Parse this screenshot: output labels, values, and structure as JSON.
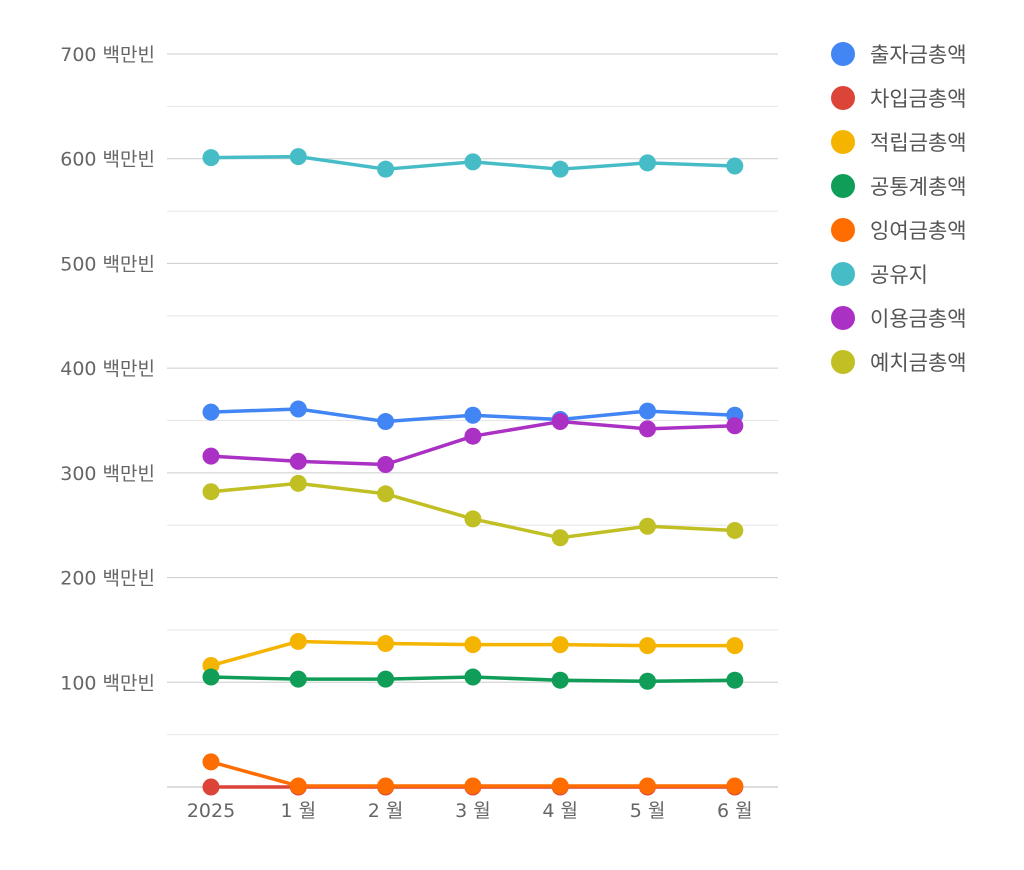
{
  "chart_data": {
    "type": "line",
    "title": "",
    "xlabel": "",
    "ylabel": "",
    "categories": [
      "2025",
      "1 월",
      "2 월",
      "3 월",
      "4 월",
      "5 월",
      "6 월"
    ],
    "ylim": [
      0,
      700
    ],
    "y_ticks": [
      {
        "value": 100,
        "label": "100 백만빈"
      },
      {
        "value": 200,
        "label": "200 백만빈"
      },
      {
        "value": 300,
        "label": "300 백만빈"
      },
      {
        "value": 400,
        "label": "400 백만빈"
      },
      {
        "value": 500,
        "label": "500 백만빈"
      },
      {
        "value": 600,
        "label": "600 백만빈"
      },
      {
        "value": 700,
        "label": "700 백만빈"
      }
    ],
    "minor_grid": [
      50,
      150,
      250,
      350,
      450,
      550,
      650
    ],
    "grid": true,
    "legend_position": "right",
    "series": [
      {
        "name": "출자금총액",
        "color": "#4285f4",
        "values": [
          358,
          361,
          349,
          355,
          351,
          359,
          355
        ]
      },
      {
        "name": "차입금총액",
        "color": "#db4437",
        "values": [
          0,
          0,
          0,
          0,
          0,
          0,
          0
        ]
      },
      {
        "name": "적립금총액",
        "color": "#f4b400",
        "values": [
          116,
          139,
          137,
          136,
          136,
          135,
          135
        ]
      },
      {
        "name": "공통계총액",
        "color": "#0f9d58",
        "values": [
          105,
          103,
          103,
          105,
          102,
          101,
          102
        ]
      },
      {
        "name": "잉여금총액",
        "color": "#ff6d00",
        "values": [
          24,
          1,
          1,
          1,
          1,
          1,
          1
        ]
      },
      {
        "name": "공유지",
        "color": "#46bdc6",
        "values": [
          601,
          602,
          590,
          597,
          590,
          596,
          593
        ]
      },
      {
        "name": "이용금총액",
        "color": "#ab30c4",
        "values": [
          316,
          311,
          308,
          335,
          349,
          342,
          345
        ]
      },
      {
        "name": "예치금총액",
        "color": "#c0bf24",
        "values": [
          282,
          290,
          280,
          256,
          238,
          249,
          245
        ]
      }
    ]
  }
}
